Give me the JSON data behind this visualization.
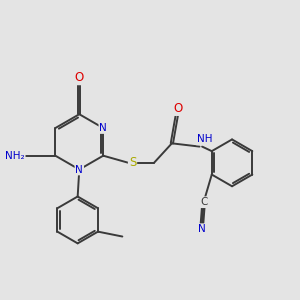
{
  "bg_color": "#e4e4e4",
  "bond_color": "#3a3a3a",
  "bond_width": 1.4,
  "atom_colors": {
    "N": "#0000cc",
    "O": "#dd0000",
    "S": "#aaaa00",
    "C": "#3a3a3a",
    "H": "#666666"
  },
  "font_size": 7.5
}
